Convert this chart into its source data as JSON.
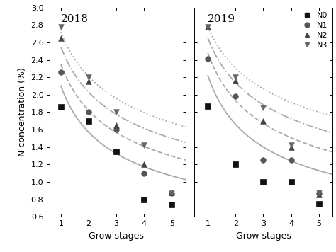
{
  "title_2018": "2018",
  "title_2019": "2019",
  "xlabel": "Grow stages",
  "ylabel": "N concentration (%)",
  "ylim": [
    0.6,
    3.0
  ],
  "xlim": [
    0.5,
    5.5
  ],
  "yticks": [
    0.6,
    0.8,
    1.0,
    1.2,
    1.4,
    1.6,
    1.8,
    2.0,
    2.2,
    2.4,
    2.6,
    2.8,
    3.0
  ],
  "xticks": [
    1,
    2,
    3,
    4,
    5
  ],
  "data_2018": {
    "N0": [
      [
        1,
        1.86
      ],
      [
        2,
        1.7
      ],
      [
        3,
        1.35
      ],
      [
        4,
        0.8
      ],
      [
        5,
        0.74
      ]
    ],
    "N1": [
      [
        1,
        2.26
      ],
      [
        2,
        1.8
      ],
      [
        3,
        1.6
      ],
      [
        4,
        1.1
      ],
      [
        5,
        0.87
      ]
    ],
    "N2": [
      [
        1,
        2.65
      ],
      [
        2,
        2.15
      ],
      [
        3,
        1.65
      ],
      [
        4,
        1.2
      ],
      [
        5,
        0.88
      ]
    ],
    "N3": [
      [
        1,
        2.78
      ],
      [
        2,
        2.2
      ],
      [
        3,
        1.8
      ],
      [
        4,
        1.42
      ],
      [
        5,
        0.87
      ]
    ]
  },
  "data_2019": {
    "N0": [
      [
        1,
        1.87
      ],
      [
        2,
        1.2
      ],
      [
        3,
        1.0
      ],
      [
        4,
        1.0
      ],
      [
        5,
        0.75
      ]
    ],
    "N1": [
      [
        1,
        2.41
      ],
      [
        2,
        1.98
      ],
      [
        3,
        1.25
      ],
      [
        4,
        1.25
      ],
      [
        5,
        0.87
      ]
    ],
    "N2": [
      [
        1,
        2.78
      ],
      [
        2,
        2.16
      ],
      [
        3,
        1.7
      ],
      [
        4,
        1.4
      ],
      [
        5,
        0.85
      ]
    ],
    "N3": [
      [
        1,
        2.78
      ],
      [
        2,
        2.2
      ],
      [
        3,
        1.85
      ],
      [
        4,
        1.42
      ],
      [
        5,
        0.88
      ]
    ]
  },
  "curves_2018": {
    "N0": {
      "a": 2.1,
      "b": -0.42
    },
    "N1": {
      "a": 2.35,
      "b": -0.37
    },
    "N2": {
      "a": 2.55,
      "b": -0.33
    },
    "N3": {
      "a": 2.72,
      "b": -0.3
    }
  },
  "curves_2019": {
    "N0": {
      "a": 2.22,
      "b": -0.42
    },
    "N1": {
      "a": 2.48,
      "b": -0.36
    },
    "N2": {
      "a": 2.65,
      "b": -0.31
    },
    "N3": {
      "a": 2.78,
      "b": -0.27
    }
  },
  "markers": {
    "N0": "s",
    "N1": "o",
    "N2": "^",
    "N3": "v"
  },
  "linestyles": {
    "N0": "-",
    "N1": "--",
    "N2": "-.",
    "N3": ":"
  },
  "marker_colors": {
    "N0": "#111111",
    "N1": "#555555",
    "N2": "#444444",
    "N3": "#666666"
  },
  "curve_color": "#aaaaaa",
  "legend_labels": [
    "N0",
    "N1",
    "N2",
    "N3"
  ]
}
